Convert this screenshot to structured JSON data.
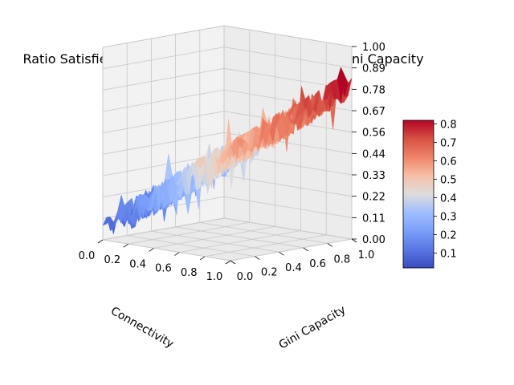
{
  "chart_data": {
    "type": "surface",
    "title": "Ratio Satisfied as a Function of Connectivity and Gini Capacity",
    "xlabel": "Connectivity",
    "ylabel": "Gini Capacity",
    "zlabel": "",
    "xlim": [
      0,
      1
    ],
    "ylim": [
      0,
      1
    ],
    "zlim": [
      0,
      1
    ],
    "x_ticks": [
      "0.0",
      "0.2",
      "0.4",
      "0.6",
      "0.8",
      "1.0"
    ],
    "y_ticks": [
      "0.0",
      "0.2",
      "0.4",
      "0.6",
      "0.8",
      "1.0"
    ],
    "z_ticks": [
      "0.00",
      "0.11",
      "0.22",
      "0.33",
      "0.44",
      "0.56",
      "0.67",
      "0.78",
      "0.89",
      "1.00"
    ],
    "colormap": "coolwarm",
    "colorbar_ticks": [
      "0.1",
      "0.2",
      "0.3",
      "0.4",
      "0.5",
      "0.6",
      "0.7",
      "0.8"
    ],
    "colorbar_range": [
      0.02,
      0.82
    ],
    "approx_z_surface": {
      "x": [
        0.0,
        0.5,
        1.0
      ],
      "y": [
        0.0,
        0.5,
        1.0
      ],
      "z": [
        [
          0.05,
          0.15,
          0.3
        ],
        [
          0.35,
          0.45,
          0.6
        ],
        [
          0.55,
          0.65,
          0.8
        ]
      ]
    },
    "grid": true,
    "colors": {
      "low": "#3b4cc0",
      "mid": "#dddddd",
      "high": "#b40426"
    }
  }
}
